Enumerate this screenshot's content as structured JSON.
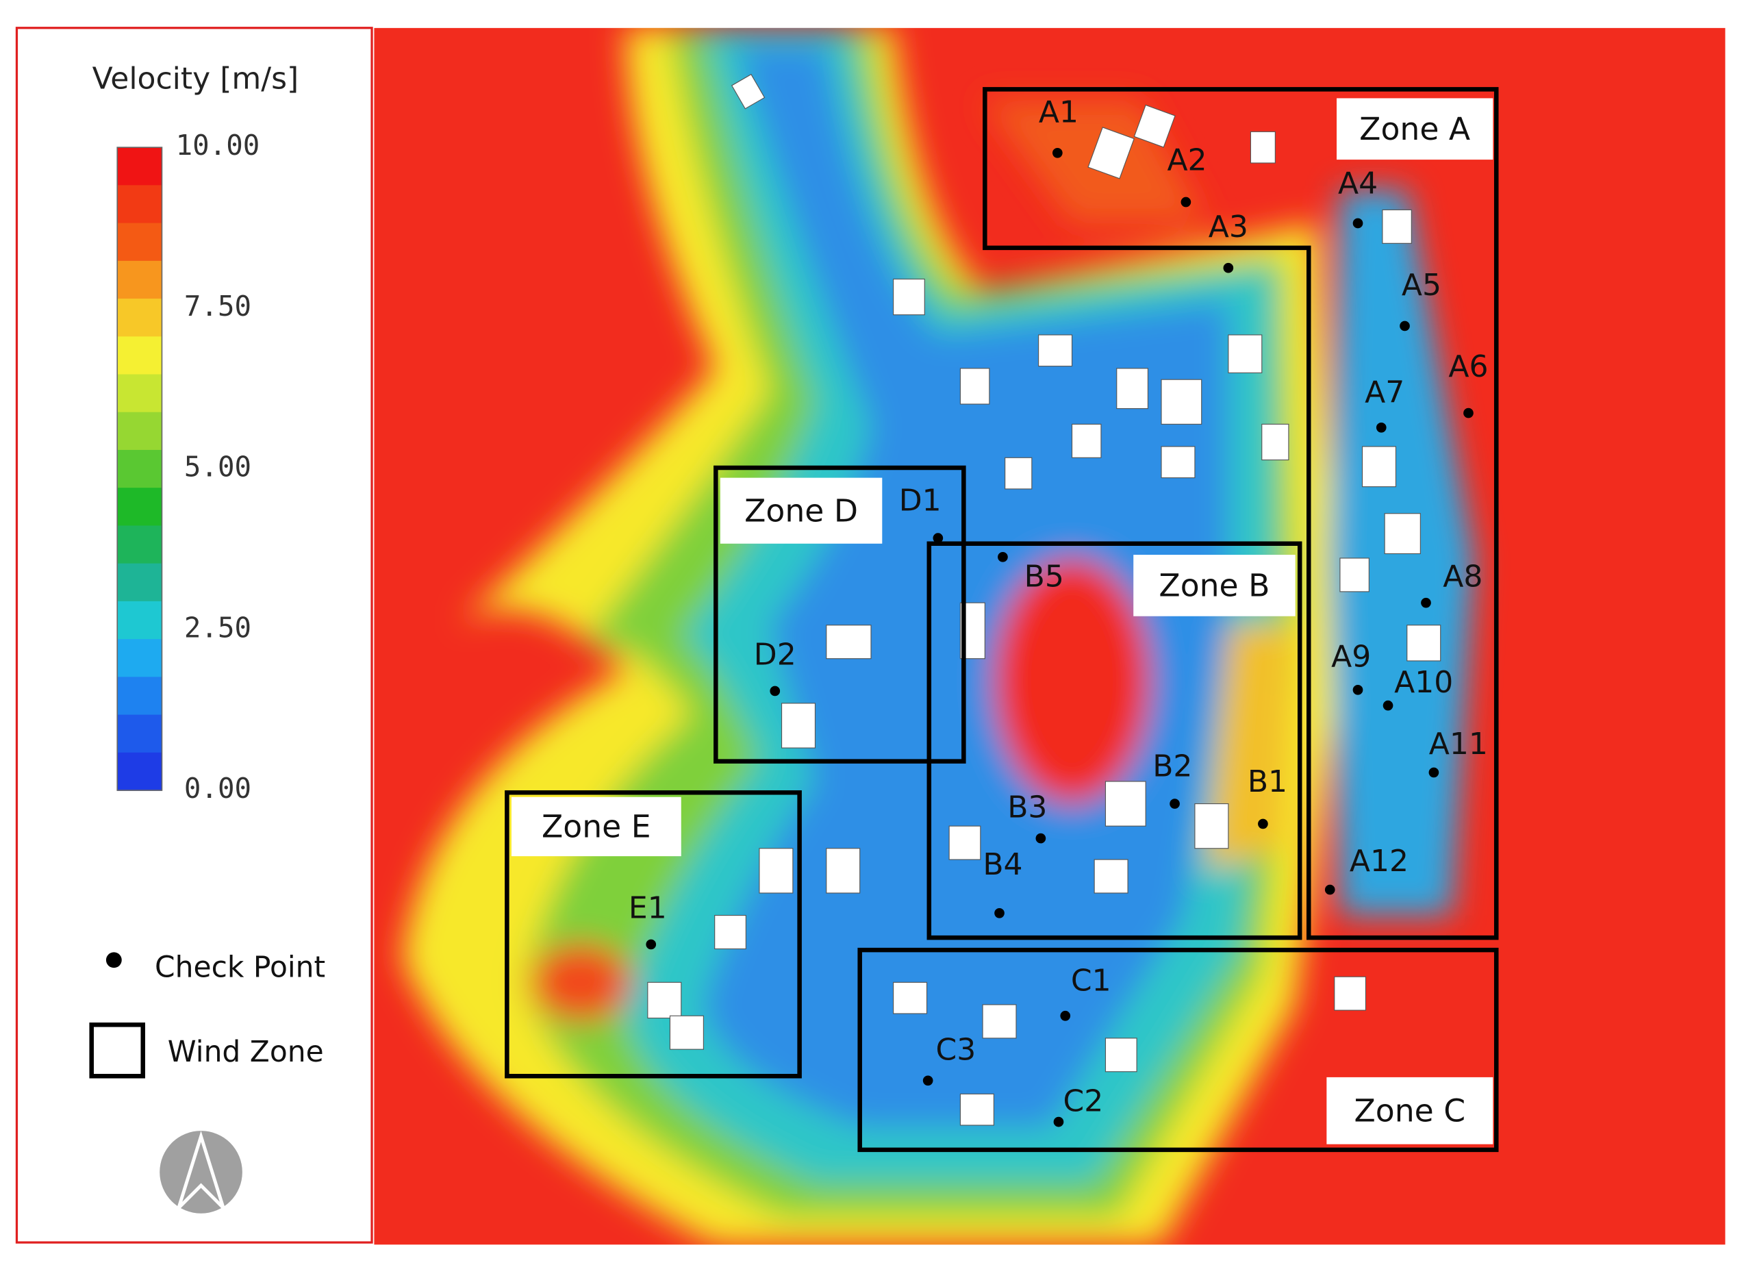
{
  "legend": {
    "title": "Velocity [m/s]",
    "scale_labels": [
      "10.00",
      "7.50",
      "5.00",
      "2.50",
      "0.00"
    ],
    "items": [
      {
        "label": "Check Point"
      },
      {
        "label": "Wind Zone"
      }
    ]
  },
  "zones": [
    {
      "label": "Zone A"
    },
    {
      "label": "Zone B"
    },
    {
      "label": "Zone C"
    },
    {
      "label": "Zone D"
    },
    {
      "label": "Zone E"
    }
  ],
  "check_points": [
    {
      "label": "A1"
    },
    {
      "label": "A2"
    },
    {
      "label": "A3"
    },
    {
      "label": "A4"
    },
    {
      "label": "A5"
    },
    {
      "label": "A6"
    },
    {
      "label": "A7"
    },
    {
      "label": "A8"
    },
    {
      "label": "A9"
    },
    {
      "label": "A10"
    },
    {
      "label": "A11"
    },
    {
      "label": "A12"
    },
    {
      "label": "B1"
    },
    {
      "label": "B2"
    },
    {
      "label": "B3"
    },
    {
      "label": "B4"
    },
    {
      "label": "B5"
    },
    {
      "label": "C1"
    },
    {
      "label": "C2"
    },
    {
      "label": "C3"
    },
    {
      "label": "D1"
    },
    {
      "label": "D2"
    },
    {
      "label": "E1"
    }
  ]
}
